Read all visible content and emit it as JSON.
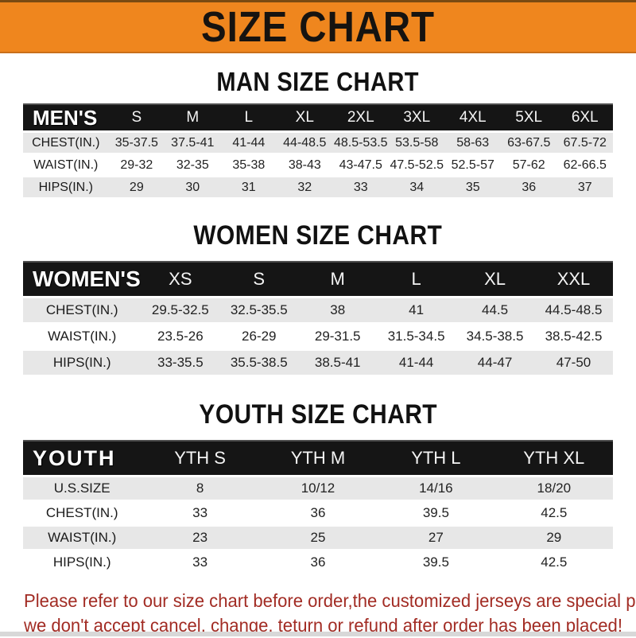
{
  "header": {
    "title": "SIZE CHART"
  },
  "sections": [
    {
      "name": "man-size-chart",
      "css": "sec-men",
      "title": "MAN SIZE CHART",
      "table": {
        "header_label": "MEN'S",
        "columns": [
          "S",
          "M",
          "L",
          "XL",
          "2XL",
          "3XL",
          "4XL",
          "5XL",
          "6XL"
        ],
        "rows": [
          {
            "label": "CHEST(IN.)",
            "values": [
              "35-37.5",
              "37.5-41",
              "41-44",
              "44-48.5",
              "48.5-53.5",
              "53.5-58",
              "58-63",
              "63-67.5",
              "67.5-72"
            ]
          },
          {
            "label": "WAIST(IN.)",
            "values": [
              "29-32",
              "32-35",
              "35-38",
              "38-43",
              "43-47.5",
              "47.5-52.5",
              "52.5-57",
              "57-62",
              "62-66.5"
            ]
          },
          {
            "label": "HIPS(IN.)",
            "values": [
              "29",
              "30",
              "31",
              "32",
              "33",
              "34",
              "35",
              "36",
              "37"
            ]
          }
        ]
      }
    },
    {
      "name": "women-size-chart",
      "css": "sec-women",
      "title": "WOMEN SIZE CHART",
      "table": {
        "header_label": "WOMEN'S",
        "columns": [
          "XS",
          "S",
          "M",
          "L",
          "XL",
          "XXL"
        ],
        "rows": [
          {
            "label": "CHEST(IN.)",
            "values": [
              "29.5-32.5",
              "32.5-35.5",
              "38",
              "41",
              "44.5",
              "44.5-48.5"
            ]
          },
          {
            "label": "WAIST(IN.)",
            "values": [
              "23.5-26",
              "26-29",
              "29-31.5",
              "31.5-34.5",
              "34.5-38.5",
              "38.5-42.5"
            ]
          },
          {
            "label": "HIPS(IN.)",
            "values": [
              "33-35.5",
              "35.5-38.5",
              "38.5-41",
              "41-44",
              "44-47",
              "47-50"
            ]
          }
        ]
      }
    },
    {
      "name": "youth-size-chart",
      "css": "sec-youth",
      "title": "YOUTH SIZE CHART",
      "table": {
        "header_label": "YOUTH",
        "columns": [
          "YTH S",
          "YTH M",
          "YTH L",
          "YTH XL"
        ],
        "rows": [
          {
            "label": "U.S.SIZE",
            "values": [
              "8",
              "10/12",
              "14/16",
              "18/20"
            ]
          },
          {
            "label": "CHEST(IN.)",
            "values": [
              "33",
              "36",
              "39.5",
              "42.5"
            ]
          },
          {
            "label": "WAIST(IN.)",
            "values": [
              "23",
              "25",
              "27",
              "29"
            ]
          },
          {
            "label": "HIPS(IN.)",
            "values": [
              "33",
              "36",
              "39.5",
              "42.5"
            ]
          }
        ]
      }
    }
  ],
  "footer": {
    "line1": "Please refer to our size chart before order,the customized jerseys are special products,",
    "line2": "we don't accept cancel, change, teturn or refund after order has been placed!"
  },
  "colors": {
    "banner_orange": "#EF861E",
    "banner_top_edge": "#7A4A12",
    "banner_bottom_edge": "#C96F1A",
    "header_black": "#151515",
    "row_gray": "#E7E7E7",
    "footer_red": "#A22C24",
    "bottom_strip": "#D8D8D8"
  }
}
